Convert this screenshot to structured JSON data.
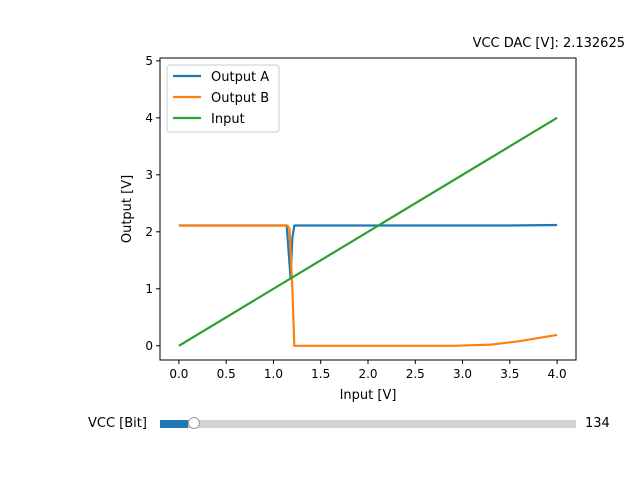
{
  "readout": {
    "label": "VCC DAC [V]:",
    "value": "2.132625"
  },
  "slider": {
    "label": "VCC [Bit]",
    "value": 134,
    "min": 0,
    "max": 4095,
    "fill_color": "#1f77b4",
    "track_color": "#d3d3d3"
  },
  "chart_data": {
    "type": "line",
    "title": "",
    "xlabel": "Input [V]",
    "ylabel": "Output [V]",
    "xlim": [
      -0.2,
      4.2
    ],
    "ylim": [
      -0.25,
      5.05
    ],
    "xticks": [
      "0.0",
      "0.5",
      "1.0",
      "1.5",
      "2.0",
      "2.5",
      "3.0",
      "3.5",
      "4.0"
    ],
    "yticks": [
      "0",
      "1",
      "2",
      "3",
      "4",
      "5"
    ],
    "legend_position": "top-left",
    "grid": false,
    "series": [
      {
        "name": "Output A",
        "color": "#1f77b4",
        "x": [
          0.0,
          1.0,
          1.14,
          1.18,
          1.2,
          1.22,
          1.5,
          2.0,
          3.0,
          3.5,
          4.0
        ],
        "y": [
          2.11,
          2.11,
          2.11,
          1.2,
          1.9,
          2.11,
          2.11,
          2.11,
          2.11,
          2.11,
          2.12
        ]
      },
      {
        "name": "Output B",
        "color": "#ff7f0e",
        "x": [
          0.0,
          1.0,
          1.15,
          1.17,
          1.2,
          1.22,
          1.5,
          2.0,
          2.9,
          3.3,
          3.6,
          4.0
        ],
        "y": [
          2.11,
          2.11,
          2.11,
          2.05,
          1.0,
          0.0,
          0.0,
          0.0,
          0.0,
          0.02,
          0.08,
          0.19
        ]
      },
      {
        "name": "Input",
        "color": "#2ca02c",
        "x": [
          0.0,
          4.0
        ],
        "y": [
          0.0,
          4.0
        ]
      }
    ]
  }
}
